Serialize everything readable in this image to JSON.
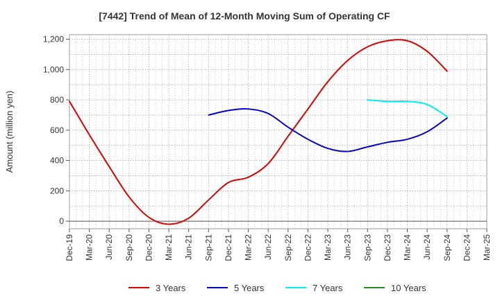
{
  "chart_data": {
    "type": "line",
    "title": "[7442]  Trend of Mean of 12-Month Moving Sum of Operating CF",
    "ylabel": "Amount (million yen)",
    "xlabel": "",
    "ylim": [
      -50,
      1230
    ],
    "yticks": [
      0,
      200,
      400,
      600,
      800,
      1000,
      1200
    ],
    "ytick_labels": [
      "0",
      "200",
      "400",
      "600",
      "800",
      "1,000",
      "1,200"
    ],
    "categories": [
      "Dec-19",
      "Mar-20",
      "Jun-20",
      "Sep-20",
      "Dec-20",
      "Mar-21",
      "Jun-21",
      "Sep-21",
      "Dec-21",
      "Mar-22",
      "Jun-22",
      "Sep-22",
      "Dec-22",
      "Mar-23",
      "Jun-23",
      "Sep-23",
      "Dec-23",
      "Mar-24",
      "Jun-24",
      "Sep-24",
      "Dec-24",
      "Mar-25"
    ],
    "grid": true,
    "legend_position": "bottom",
    "series": [
      {
        "name": "3 Years",
        "color": "#dd0000",
        "values": [
          790,
          570,
          360,
          160,
          25,
          -20,
          20,
          140,
          255,
          290,
          380,
          560,
          740,
          920,
          1060,
          1150,
          1190,
          1190,
          1120,
          990,
          null,
          null
        ]
      },
      {
        "name": "5 Years",
        "color": "#0000cc",
        "values": [
          null,
          null,
          null,
          null,
          null,
          null,
          null,
          700,
          730,
          740,
          710,
          620,
          540,
          480,
          460,
          490,
          520,
          540,
          590,
          680,
          null,
          null
        ]
      },
      {
        "name": "7 Years",
        "color": "#00eeee",
        "values": [
          null,
          null,
          null,
          null,
          null,
          null,
          null,
          null,
          null,
          null,
          null,
          null,
          null,
          null,
          null,
          800,
          790,
          790,
          770,
          690,
          null,
          null
        ]
      },
      {
        "name": "10 Years",
        "color": "#228b22",
        "values": [
          null,
          null,
          null,
          null,
          null,
          null,
          null,
          null,
          null,
          null,
          null,
          null,
          null,
          null,
          null,
          null,
          null,
          null,
          null,
          null,
          null,
          null
        ]
      }
    ]
  }
}
